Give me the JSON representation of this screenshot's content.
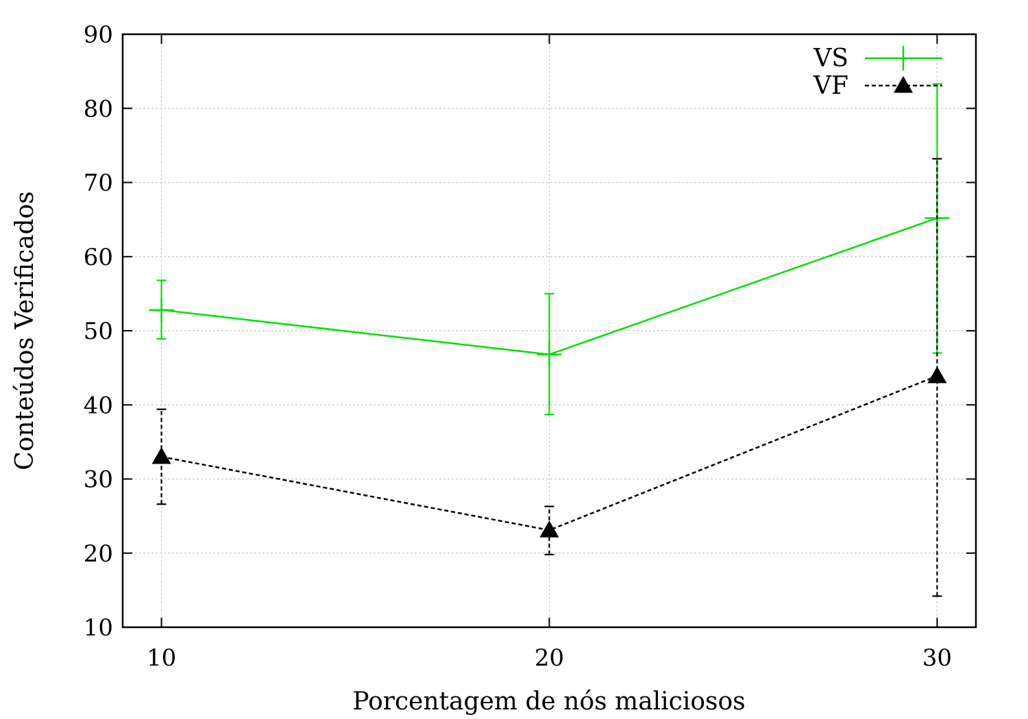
{
  "chart_data": {
    "type": "line",
    "title": "",
    "xlabel": "Porcentagem de nós maliciosos",
    "ylabel": "Conteúdos Verificados",
    "x": [
      10,
      20,
      30
    ],
    "xlim": [
      9,
      31
    ],
    "ylim": [
      10,
      90
    ],
    "xticks": [
      "10",
      "20",
      "30"
    ],
    "yticks": [
      "10",
      "20",
      "30",
      "40",
      "50",
      "60",
      "70",
      "80",
      "90"
    ],
    "grid": true,
    "legend_position": "top-right",
    "series": [
      {
        "name": "VS",
        "color": "#00e000",
        "line_style": "solid",
        "marker": "plus",
        "values": [
          52.8,
          46.8,
          65.2
        ],
        "error_low": [
          48.9,
          38.7,
          47.0
        ],
        "error_high": [
          56.8,
          55.0,
          83.3
        ]
      },
      {
        "name": "VF",
        "color": "#000000",
        "line_style": "dashed",
        "marker": "triangle",
        "values": [
          33.0,
          23.1,
          43.9
        ],
        "error_low": [
          26.6,
          19.8,
          14.2
        ],
        "error_high": [
          39.4,
          26.3,
          73.2
        ]
      }
    ]
  }
}
